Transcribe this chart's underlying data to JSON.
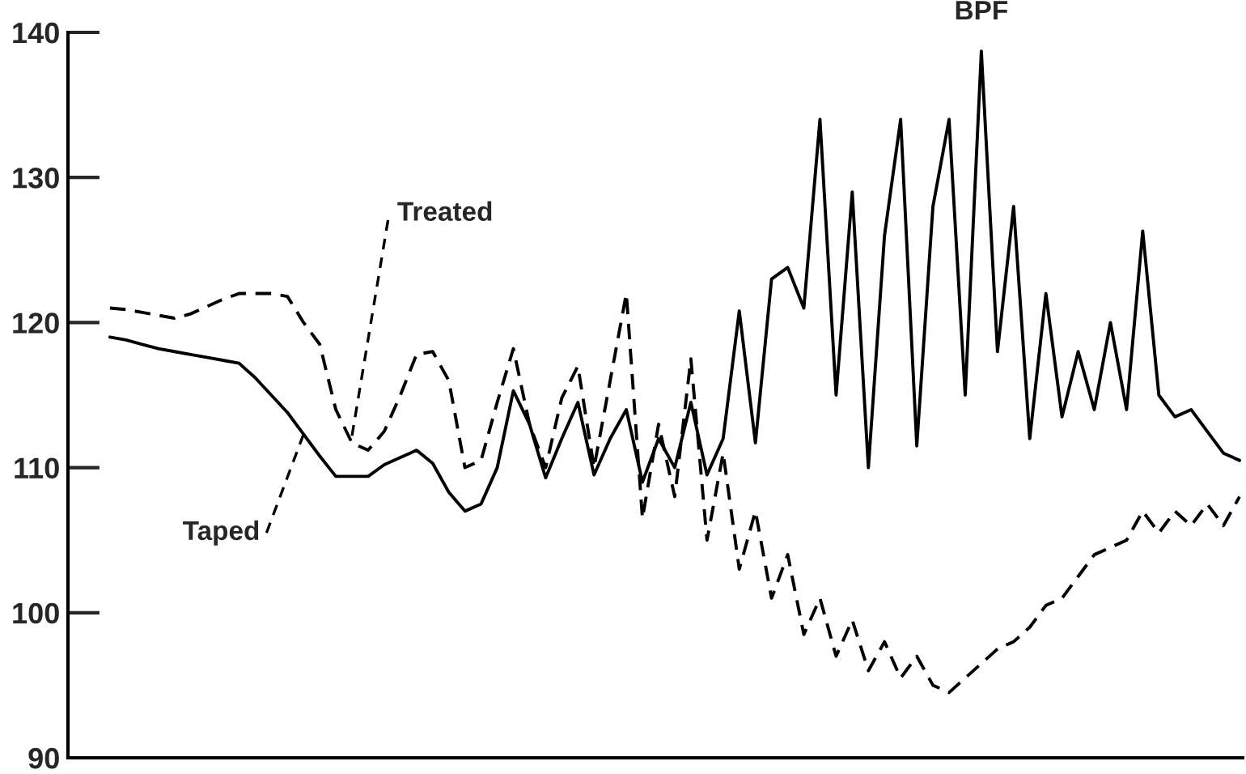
{
  "chart_data": {
    "type": "line",
    "categories": [
      null,
      null,
      null,
      null,
      null,
      null,
      null,
      null,
      null,
      null,
      null,
      null,
      null,
      null,
      null,
      null,
      null,
      null,
      null,
      null,
      null,
      null,
      null,
      null,
      null,
      null,
      null,
      null,
      null,
      null,
      null,
      null,
      null,
      null,
      null,
      null,
      null,
      null,
      null,
      null,
      null,
      null,
      null,
      null,
      null,
      null,
      null,
      null,
      null,
      null,
      null,
      null,
      null,
      null,
      null,
      null,
      null,
      null,
      null,
      null,
      null,
      null,
      null,
      null,
      null,
      null,
      null,
      null,
      null,
      null,
      null
    ],
    "series": [
      {
        "name": "Treated",
        "color": "#000000",
        "line_style": "dashed",
        "values": [
          121,
          120.9,
          120.7,
          120.5,
          120.3,
          120.6,
          121.1,
          121.6,
          122,
          122,
          122,
          121.8,
          120,
          118.5,
          114,
          111.7,
          111.2,
          112.5,
          115,
          117.8,
          118,
          116,
          110,
          110.5,
          114.5,
          118.2,
          113,
          110,
          114.8,
          117,
          110,
          116,
          122,
          106.5,
          113,
          108,
          117.5,
          105,
          111,
          103,
          107,
          101,
          104,
          98.5,
          101,
          97,
          99.5,
          96,
          98,
          95.5,
          97,
          95,
          94.5,
          95.5,
          96.5,
          97.5,
          98,
          99,
          100.5,
          101,
          102.5,
          104,
          104.5,
          105,
          107,
          105.5,
          107,
          106,
          107.5,
          106,
          108
        ]
      },
      {
        "name": "Taped",
        "color": "#000000",
        "line_style": "solid",
        "values": [
          119,
          118.8,
          118.5,
          118.2,
          118,
          117.8,
          117.6,
          117.4,
          117.2,
          116.2,
          115,
          113.8,
          112.3,
          110.8,
          109.4,
          109.4,
          109.4,
          110.2,
          110.7,
          111.2,
          110.3,
          108.3,
          107,
          107.5,
          110,
          115.3,
          113,
          109.3,
          112,
          114.5,
          109.5,
          112,
          114,
          109,
          112,
          110,
          114.5,
          109.5,
          112,
          120.8,
          111.7,
          123,
          123.8,
          121,
          134,
          115,
          129,
          110,
          126,
          134,
          111.5,
          128,
          134,
          115,
          138.7,
          118,
          128,
          112,
          122,
          113.5,
          118,
          114,
          120,
          114,
          126.3,
          115,
          113.5,
          114,
          112.5,
          111,
          110.5
        ]
      }
    ],
    "annotations": [
      "BPF"
    ],
    "ylim": [
      90,
      140
    ],
    "yticks": [
      90,
      100,
      110,
      120,
      130,
      140
    ],
    "grid": false,
    "legend": false
  }
}
